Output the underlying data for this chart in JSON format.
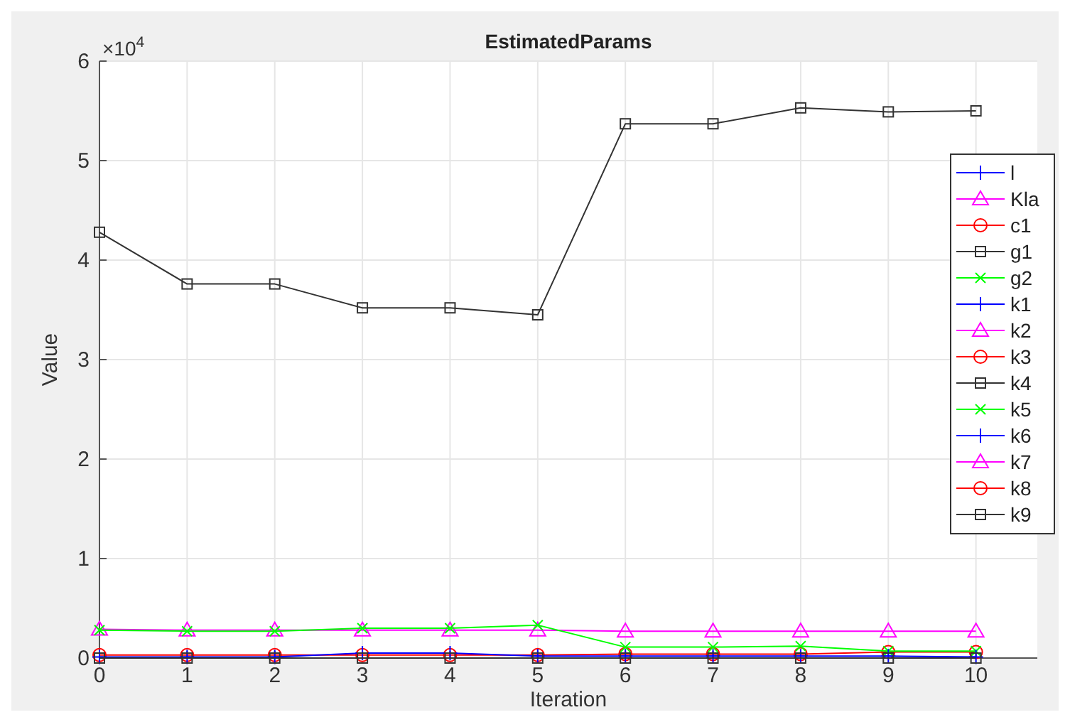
{
  "chart_data": {
    "type": "line",
    "title": "EstimatedParams",
    "xlabel": "Iteration",
    "ylabel": "Value",
    "annotations": [
      "×10$^{4}$"
    ],
    "x": [
      0,
      1,
      2,
      3,
      4,
      5,
      6,
      7,
      8,
      9,
      10
    ],
    "xlim": [
      0,
      10.7
    ],
    "xticks": [
      0,
      1,
      2,
      3,
      4,
      5,
      6,
      7,
      8,
      9,
      10
    ],
    "ylim": [
      0,
      6
    ],
    "yticks": [
      0,
      1,
      2,
      3,
      4,
      5,
      6
    ],
    "grid": true,
    "legend": "right",
    "series": [
      {
        "name": "l",
        "color": "#0000ff",
        "marker": "plus",
        "values": [
          null,
          null,
          null,
          null,
          null,
          null,
          null,
          null,
          null,
          null,
          null
        ]
      },
      {
        "name": "Kla",
        "color": "#ff00ff",
        "marker": "triangle",
        "values": [
          0.29,
          0.28,
          0.28,
          0.28,
          0.28,
          0.28,
          0.27,
          0.27,
          0.27,
          0.27,
          0.27
        ]
      },
      {
        "name": "c1",
        "color": "#ff0000",
        "marker": "circle",
        "values": [
          0.03,
          0.03,
          0.03,
          0.03,
          0.03,
          0.03,
          0.04,
          0.04,
          0.04,
          0.06,
          0.06
        ]
      },
      {
        "name": "g1",
        "color": "#333333",
        "marker": "square",
        "values": [
          4.28,
          3.76,
          3.76,
          3.52,
          3.52,
          3.45,
          5.37,
          5.37,
          5.53,
          5.49,
          5.5
        ]
      },
      {
        "name": "g2",
        "color": "#00ff00",
        "marker": "cross",
        "values": [
          0.28,
          0.27,
          0.27,
          0.3,
          0.3,
          0.33,
          0.11,
          0.11,
          0.12,
          0.07,
          0.07
        ]
      },
      {
        "name": "k1",
        "color": "#0000ff",
        "marker": "plus",
        "values": [
          0.01,
          0.01,
          0.01,
          0.05,
          0.05,
          0.02,
          0.02,
          0.02,
          0.02,
          0.02,
          0.01
        ]
      },
      {
        "name": "k2",
        "color": "#ff00ff",
        "marker": "triangle",
        "values": [
          null,
          null,
          null,
          null,
          null,
          null,
          null,
          null,
          null,
          null,
          null
        ]
      },
      {
        "name": "k3",
        "color": "#ff0000",
        "marker": "circle",
        "values": [
          null,
          null,
          null,
          null,
          null,
          null,
          null,
          null,
          null,
          null,
          null
        ]
      },
      {
        "name": "k4",
        "color": "#333333",
        "marker": "square",
        "values": [
          0,
          0,
          0,
          0,
          0,
          0,
          0,
          0,
          0,
          0,
          0
        ]
      },
      {
        "name": "k5",
        "color": "#00ff00",
        "marker": "cross",
        "values": [
          null,
          null,
          null,
          null,
          null,
          null,
          null,
          null,
          null,
          null,
          null
        ]
      },
      {
        "name": "k6",
        "color": "#0000ff",
        "marker": "plus",
        "values": [
          null,
          null,
          null,
          null,
          null,
          null,
          null,
          null,
          null,
          null,
          null
        ]
      },
      {
        "name": "k7",
        "color": "#ff00ff",
        "marker": "triangle",
        "values": [
          null,
          null,
          null,
          null,
          null,
          null,
          null,
          null,
          null,
          null,
          null
        ]
      },
      {
        "name": "k8",
        "color": "#ff0000",
        "marker": "circle",
        "values": [
          null,
          null,
          null,
          null,
          null,
          null,
          null,
          null,
          null,
          null,
          null
        ]
      },
      {
        "name": "k9",
        "color": "#333333",
        "marker": "square",
        "values": [
          null,
          null,
          null,
          null,
          null,
          null,
          null,
          null,
          null,
          null,
          null
        ]
      }
    ]
  }
}
